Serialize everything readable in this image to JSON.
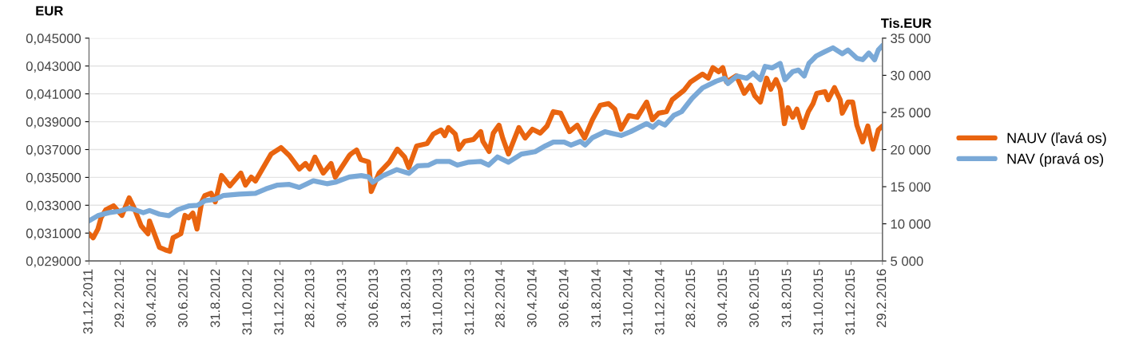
{
  "chart_data": {
    "type": "line",
    "ylabel": "EUR",
    "y2label": "Tis.EUR",
    "xlim": [
      "2011-12-31",
      "2016-02-29"
    ],
    "xticks": [
      {
        "value": "2011-12-31",
        "label": "31.12.2011"
      },
      {
        "value": "2012-02-29",
        "label": "29.2.2012"
      },
      {
        "value": "2012-04-30",
        "label": "30.4.2012"
      },
      {
        "value": "2012-06-30",
        "label": "30.6.2012"
      },
      {
        "value": "2012-08-31",
        "label": "31.8.2012"
      },
      {
        "value": "2012-10-31",
        "label": "31.10.2012"
      },
      {
        "value": "2012-12-31",
        "label": "31.12.2012"
      },
      {
        "value": "2013-02-28",
        "label": "28.2.2013"
      },
      {
        "value": "2013-04-30",
        "label": "30.4.2013"
      },
      {
        "value": "2013-06-30",
        "label": "30.6.2013"
      },
      {
        "value": "2013-08-31",
        "label": "31.8.2013"
      },
      {
        "value": "2013-10-31",
        "label": "31.10.2013"
      },
      {
        "value": "2013-12-31",
        "label": "31.12.2013"
      },
      {
        "value": "2014-02-28",
        "label": "28.2.2014"
      },
      {
        "value": "2014-04-30",
        "label": "30.4.2014"
      },
      {
        "value": "2014-06-30",
        "label": "30.6.2014"
      },
      {
        "value": "2014-08-31",
        "label": "31.8.2014"
      },
      {
        "value": "2014-10-31",
        "label": "31.10.2014"
      },
      {
        "value": "2014-12-31",
        "label": "31.12.2014"
      },
      {
        "value": "2015-02-28",
        "label": "28.2.2015"
      },
      {
        "value": "2015-04-30",
        "label": "30.4.2015"
      },
      {
        "value": "2015-06-30",
        "label": "30.6.2015"
      },
      {
        "value": "2015-08-31",
        "label": "31.8.2015"
      },
      {
        "value": "2015-10-31",
        "label": "31.10.2015"
      },
      {
        "value": "2015-12-31",
        "label": "31.12.2015"
      },
      {
        "value": "2016-02-29",
        "label": "29.2.2016"
      }
    ],
    "ylim": [
      0.029,
      0.045
    ],
    "yticks": [
      {
        "value": 0.029,
        "label": "0,029000"
      },
      {
        "value": 0.031,
        "label": "0,031000"
      },
      {
        "value": 0.033,
        "label": "0,033000"
      },
      {
        "value": 0.035,
        "label": "0,035000"
      },
      {
        "value": 0.037,
        "label": "0,037000"
      },
      {
        "value": 0.039,
        "label": "0,039000"
      },
      {
        "value": 0.041,
        "label": "0,041000"
      },
      {
        "value": 0.043,
        "label": "0,043000"
      },
      {
        "value": 0.045,
        "label": "0,045000"
      }
    ],
    "y2lim": [
      5000,
      35000
    ],
    "y2ticks": [
      {
        "value": 5000,
        "label": "5 000"
      },
      {
        "value": 10000,
        "label": "10 000"
      },
      {
        "value": 15000,
        "label": "15 000"
      },
      {
        "value": 20000,
        "label": "20 000"
      },
      {
        "value": 25000,
        "label": "25 000"
      },
      {
        "value": 30000,
        "label": "30 000"
      },
      {
        "value": 35000,
        "label": "35 000"
      }
    ],
    "grid": "y",
    "legend": "right",
    "marker": "none",
    "line_style": "solid",
    "series": [
      {
        "name": "NAUV (ľavá os)",
        "color": "#e9640f",
        "axis": "y",
        "x": [
          "2011-12-31",
          "2012-01-08",
          "2012-01-17",
          "2012-01-23",
          "2012-02-01",
          "2012-02-16",
          "2012-03-03",
          "2012-03-17",
          "2012-03-26",
          "2012-04-09",
          "2012-04-22",
          "2012-04-25",
          "2012-05-14",
          "2012-05-25",
          "2012-06-03",
          "2012-06-09",
          "2012-06-24",
          "2012-07-02",
          "2012-07-09",
          "2012-07-17",
          "2012-07-25",
          "2012-08-03",
          "2012-08-09",
          "2012-08-21",
          "2012-08-29",
          "2012-09-10",
          "2012-09-26",
          "2012-10-17",
          "2012-10-26",
          "2012-11-06",
          "2012-11-14",
          "2012-12-14",
          "2013-01-02",
          "2013-01-18",
          "2013-02-06",
          "2013-02-18",
          "2013-02-26",
          "2013-03-08",
          "2013-03-24",
          "2013-04-08",
          "2013-04-16",
          "2013-05-13",
          "2013-05-16",
          "2013-05-27",
          "2013-06-04",
          "2013-06-19",
          "2013-06-24",
          "2013-07-09",
          "2013-07-29",
          "2013-08-13",
          "2013-08-27",
          "2013-09-04",
          "2013-09-19",
          "2013-10-09",
          "2013-10-21",
          "2013-11-05",
          "2013-11-12",
          "2013-11-19",
          "2013-12-02",
          "2013-12-09",
          "2013-12-20",
          "2014-01-06",
          "2014-01-20",
          "2014-01-24",
          "2014-02-05",
          "2014-02-13",
          "2014-02-24",
          "2014-03-03",
          "2014-03-14",
          "2014-04-03",
          "2014-04-15",
          "2014-04-29",
          "2014-05-14",
          "2014-05-27",
          "2014-06-08",
          "2014-06-22",
          "2014-07-09",
          "2014-07-24",
          "2014-08-07",
          "2014-08-22",
          "2014-09-06",
          "2014-09-22",
          "2014-10-04",
          "2014-10-16",
          "2014-10-31",
          "2014-11-16",
          "2014-12-04",
          "2014-12-15",
          "2014-12-27",
          "2015-01-11",
          "2015-01-22",
          "2015-02-14",
          "2015-02-26",
          "2015-03-21",
          "2015-04-01",
          "2015-04-10",
          "2015-04-21",
          "2015-04-29",
          "2015-05-06",
          "2015-05-25",
          "2015-06-09",
          "2015-06-21",
          "2015-06-29",
          "2015-07-10",
          "2015-07-22",
          "2015-07-30",
          "2015-08-09",
          "2015-08-17",
          "2015-08-25",
          "2015-09-01",
          "2015-09-10",
          "2015-09-18",
          "2015-09-29",
          "2015-10-10",
          "2015-10-19",
          "2015-10-26",
          "2015-11-11",
          "2015-11-17",
          "2015-11-29",
          "2015-12-10",
          "2015-12-14",
          "2015-12-25",
          "2016-01-03",
          "2016-01-11",
          "2016-01-22",
          "2016-02-01",
          "2016-02-11",
          "2016-02-21",
          "2016-02-29"
        ],
        "values": [
          0.03095,
          0.03066,
          0.03129,
          0.0321,
          0.03267,
          0.03296,
          0.03227,
          0.03353,
          0.03284,
          0.03152,
          0.03095,
          0.03187,
          0.02997,
          0.0298,
          0.02969,
          0.03066,
          0.03095,
          0.03227,
          0.0321,
          0.03244,
          0.03129,
          0.03324,
          0.0337,
          0.03387,
          0.03324,
          0.03514,
          0.03439,
          0.03531,
          0.03445,
          0.03502,
          0.03474,
          0.03668,
          0.03714,
          0.03657,
          0.0356,
          0.036,
          0.0356,
          0.03646,
          0.03531,
          0.036,
          0.03502,
          0.03657,
          0.03668,
          0.03697,
          0.03628,
          0.03611,
          0.03399,
          0.03531,
          0.03611,
          0.03703,
          0.03646,
          0.03571,
          0.03726,
          0.03743,
          0.03812,
          0.03841,
          0.038,
          0.03858,
          0.03812,
          0.03703,
          0.0376,
          0.03772,
          0.03829,
          0.0376,
          0.03686,
          0.03818,
          0.03875,
          0.03783,
          0.03668,
          0.03858,
          0.03783,
          0.03846,
          0.03818,
          0.03869,
          0.03972,
          0.03961,
          0.03829,
          0.03875,
          0.03783,
          0.03915,
          0.04018,
          0.0403,
          0.0399,
          0.03846,
          0.03944,
          0.03932,
          0.04041,
          0.03915,
          0.03961,
          0.03972,
          0.04058,
          0.04127,
          0.04185,
          0.04242,
          0.04213,
          0.04288,
          0.04259,
          0.04288,
          0.04185,
          0.0423,
          0.04104,
          0.04162,
          0.04087,
          0.04041,
          0.04213,
          0.04133,
          0.04202,
          0.04133,
          0.03886,
          0.04001,
          0.03932,
          0.0399,
          0.03858,
          0.03972,
          0.0403,
          0.04104,
          0.04116,
          0.04058,
          0.04145,
          0.04058,
          0.03961,
          0.04041,
          0.04041,
          0.03875,
          0.03755,
          0.03869,
          0.03703,
          0.03841,
          0.03869
        ]
      },
      {
        "name": "NAV (pravá os)",
        "color": "#7aa9d7",
        "axis": "y2",
        "x": [
          "2011-12-31",
          "2012-01-17",
          "2012-02-07",
          "2012-02-27",
          "2012-03-17",
          "2012-04-01",
          "2012-04-13",
          "2012-04-25",
          "2012-05-14",
          "2012-06-01",
          "2012-06-18",
          "2012-07-09",
          "2012-07-26",
          "2012-08-09",
          "2012-08-29",
          "2012-09-13",
          "2012-10-14",
          "2012-11-14",
          "2012-12-04",
          "2012-12-25",
          "2013-01-18",
          "2013-02-06",
          "2013-03-05",
          "2013-03-31",
          "2013-04-16",
          "2013-05-13",
          "2013-06-05",
          "2013-06-19",
          "2013-06-27",
          "2013-07-17",
          "2013-08-12",
          "2013-09-04",
          "2013-09-21",
          "2013-10-12",
          "2013-10-27",
          "2013-11-21",
          "2013-12-06",
          "2013-12-28",
          "2014-01-20",
          "2014-02-04",
          "2014-02-21",
          "2014-03-14",
          "2014-04-08",
          "2014-05-04",
          "2014-05-24",
          "2014-06-08",
          "2014-06-29",
          "2014-07-12",
          "2014-07-30",
          "2014-08-08",
          "2014-08-22",
          "2014-09-15",
          "2014-10-16",
          "2014-11-03",
          "2014-12-04",
          "2014-12-16",
          "2014-12-27",
          "2015-01-08",
          "2015-01-25",
          "2015-02-09",
          "2015-03-01",
          "2015-03-21",
          "2015-04-16",
          "2015-05-02",
          "2015-05-09",
          "2015-05-26",
          "2015-06-14",
          "2015-06-26",
          "2015-07-10",
          "2015-07-19",
          "2015-08-02",
          "2015-08-17",
          "2015-08-26",
          "2015-09-10",
          "2015-09-21",
          "2015-10-02",
          "2015-10-11",
          "2015-10-25",
          "2015-11-11",
          "2015-11-26",
          "2015-12-14",
          "2015-12-25",
          "2016-01-11",
          "2016-01-22",
          "2016-02-03",
          "2016-02-14",
          "2016-02-21",
          "2016-02-29"
        ],
        "values": [
          10400,
          11100,
          11500,
          11700,
          12100,
          11800,
          11500,
          11800,
          11300,
          11100,
          11900,
          12400,
          12500,
          13100,
          13300,
          13800,
          14000,
          14100,
          14700,
          15200,
          15300,
          14900,
          15800,
          15400,
          15600,
          16300,
          16500,
          16300,
          15600,
          16500,
          17300,
          16800,
          17800,
          17900,
          18400,
          18400,
          17900,
          18300,
          18400,
          17900,
          19000,
          18300,
          19400,
          19700,
          20500,
          21000,
          21000,
          20600,
          21100,
          20600,
          21600,
          22400,
          21900,
          22400,
          23500,
          23000,
          23700,
          23300,
          24600,
          25100,
          26900,
          28300,
          29200,
          29600,
          28900,
          29900,
          29600,
          30300,
          29400,
          31200,
          31000,
          31600,
          29400,
          30500,
          30700,
          29900,
          31600,
          32600,
          33200,
          33700,
          32900,
          33400,
          32300,
          32100,
          33000,
          32100,
          33400,
          34000
        ]
      }
    ]
  }
}
